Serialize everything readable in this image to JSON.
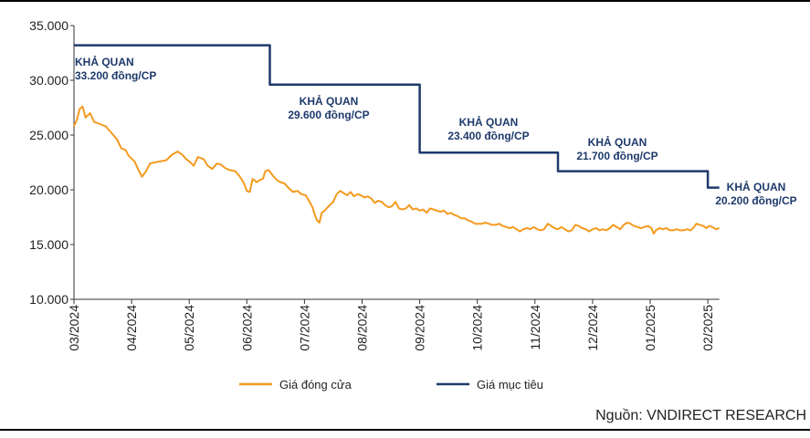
{
  "chart_data": {
    "type": "line",
    "ylim": [
      10000,
      35000
    ],
    "y_ticks": [
      "10.000",
      "15.000",
      "20.000",
      "25.000",
      "30.000",
      "35.000"
    ],
    "x_tick_labels": [
      "03/2024",
      "04/2024",
      "05/2024",
      "06/2024",
      "07/2024",
      "08/2024",
      "09/2024",
      "10/2024",
      "11/2024",
      "12/2024",
      "01/2025",
      "02/2025"
    ],
    "grid": false,
    "legend_position": "bottom",
    "series": [
      {
        "name": "Giá đóng cửa",
        "color": "#f39a1f",
        "points": [
          [
            0.0,
            25800
          ],
          [
            0.05,
            26400
          ],
          [
            0.1,
            27400
          ],
          [
            0.15,
            27600
          ],
          [
            0.2,
            26600
          ],
          [
            0.28,
            27000
          ],
          [
            0.35,
            26200
          ],
          [
            0.45,
            26000
          ],
          [
            0.55,
            25800
          ],
          [
            0.65,
            25200
          ],
          [
            0.75,
            24600
          ],
          [
            0.82,
            23800
          ],
          [
            0.9,
            23600
          ],
          [
            0.95,
            23100
          ],
          [
            1.05,
            22600
          ],
          [
            1.12,
            21800
          ],
          [
            1.18,
            21200
          ],
          [
            1.25,
            21700
          ],
          [
            1.32,
            22400
          ],
          [
            1.4,
            22500
          ],
          [
            1.5,
            22600
          ],
          [
            1.6,
            22700
          ],
          [
            1.7,
            23200
          ],
          [
            1.8,
            23500
          ],
          [
            1.88,
            23200
          ],
          [
            1.95,
            22800
          ],
          [
            2.0,
            22600
          ],
          [
            2.08,
            22200
          ],
          [
            2.15,
            23000
          ],
          [
            2.25,
            22800
          ],
          [
            2.32,
            22200
          ],
          [
            2.4,
            21900
          ],
          [
            2.48,
            22400
          ],
          [
            2.55,
            22300
          ],
          [
            2.62,
            22000
          ],
          [
            2.7,
            21800
          ],
          [
            2.8,
            21700
          ],
          [
            2.88,
            21200
          ],
          [
            2.95,
            20600
          ],
          [
            3.0,
            19900
          ],
          [
            3.05,
            19800
          ],
          [
            3.1,
            21000
          ],
          [
            3.17,
            20700
          ],
          [
            3.23,
            20900
          ],
          [
            3.28,
            21000
          ],
          [
            3.32,
            21700
          ],
          [
            3.38,
            21800
          ],
          [
            3.45,
            21300
          ],
          [
            3.52,
            20900
          ],
          [
            3.58,
            20700
          ],
          [
            3.65,
            20600
          ],
          [
            3.72,
            20200
          ],
          [
            3.8,
            19800
          ],
          [
            3.88,
            19900
          ],
          [
            3.95,
            19600
          ],
          [
            4.02,
            19500
          ],
          [
            4.08,
            19000
          ],
          [
            4.14,
            18400
          ],
          [
            4.18,
            17700
          ],
          [
            4.22,
            17200
          ],
          [
            4.26,
            17000
          ],
          [
            4.3,
            17900
          ],
          [
            4.35,
            18100
          ],
          [
            4.42,
            18500
          ],
          [
            4.5,
            18900
          ],
          [
            4.56,
            19600
          ],
          [
            4.62,
            19900
          ],
          [
            4.68,
            19700
          ],
          [
            4.74,
            19500
          ],
          [
            4.8,
            19800
          ],
          [
            4.86,
            19400
          ],
          [
            4.92,
            19600
          ],
          [
            4.98,
            19500
          ],
          [
            5.04,
            19300
          ],
          [
            5.1,
            19400
          ],
          [
            5.16,
            19200
          ],
          [
            5.22,
            18800
          ],
          [
            5.28,
            19000
          ],
          [
            5.34,
            18900
          ],
          [
            5.4,
            18600
          ],
          [
            5.46,
            18400
          ],
          [
            5.52,
            18500
          ],
          [
            5.58,
            18900
          ],
          [
            5.64,
            18300
          ],
          [
            5.7,
            18200
          ],
          [
            5.76,
            18300
          ],
          [
            5.82,
            18600
          ],
          [
            5.88,
            18200
          ],
          [
            5.94,
            18300
          ],
          [
            6.0,
            18100
          ],
          [
            6.06,
            18200
          ],
          [
            6.12,
            17900
          ],
          [
            6.18,
            18300
          ],
          [
            6.24,
            18200
          ],
          [
            6.3,
            18100
          ],
          [
            6.36,
            18000
          ],
          [
            6.42,
            18100
          ],
          [
            6.48,
            17800
          ],
          [
            6.54,
            17900
          ],
          [
            6.6,
            17700
          ],
          [
            6.66,
            17600
          ],
          [
            6.72,
            17400
          ],
          [
            6.78,
            17400
          ],
          [
            6.84,
            17200
          ],
          [
            6.9,
            17100
          ],
          [
            6.96,
            16900
          ],
          [
            7.02,
            16900
          ],
          [
            7.08,
            16900
          ],
          [
            7.14,
            17000
          ],
          [
            7.2,
            16900
          ],
          [
            7.26,
            16800
          ],
          [
            7.32,
            16800
          ],
          [
            7.38,
            16900
          ],
          [
            7.44,
            16700
          ],
          [
            7.5,
            16600
          ],
          [
            7.56,
            16500
          ],
          [
            7.62,
            16600
          ],
          [
            7.68,
            16400
          ],
          [
            7.74,
            16200
          ],
          [
            7.8,
            16400
          ],
          [
            7.86,
            16500
          ],
          [
            7.92,
            16400
          ],
          [
            7.98,
            16600
          ],
          [
            8.04,
            16400
          ],
          [
            8.1,
            16300
          ],
          [
            8.16,
            16400
          ],
          [
            8.22,
            16900
          ],
          [
            8.28,
            16700
          ],
          [
            8.34,
            16500
          ],
          [
            8.4,
            16400
          ],
          [
            8.46,
            16600
          ],
          [
            8.52,
            16400
          ],
          [
            8.58,
            16200
          ],
          [
            8.64,
            16300
          ],
          [
            8.7,
            16800
          ],
          [
            8.76,
            16700
          ],
          [
            8.82,
            16500
          ],
          [
            8.88,
            16400
          ],
          [
            8.94,
            16200
          ],
          [
            9.0,
            16400
          ],
          [
            9.06,
            16500
          ],
          [
            9.12,
            16300
          ],
          [
            9.18,
            16400
          ],
          [
            9.24,
            16300
          ],
          [
            9.3,
            16500
          ],
          [
            9.36,
            16800
          ],
          [
            9.42,
            16600
          ],
          [
            9.48,
            16400
          ],
          [
            9.54,
            16800
          ],
          [
            9.6,
            17000
          ],
          [
            9.66,
            16900
          ],
          [
            9.72,
            16700
          ],
          [
            9.78,
            16600
          ],
          [
            9.84,
            16500
          ],
          [
            9.9,
            16600
          ],
          [
            9.96,
            16700
          ],
          [
            10.02,
            16500
          ],
          [
            10.06,
            16000
          ],
          [
            10.1,
            16300
          ],
          [
            10.16,
            16500
          ],
          [
            10.22,
            16400
          ],
          [
            10.28,
            16500
          ],
          [
            10.34,
            16300
          ],
          [
            10.4,
            16300
          ],
          [
            10.46,
            16400
          ],
          [
            10.52,
            16300
          ],
          [
            10.58,
            16300
          ],
          [
            10.64,
            16400
          ],
          [
            10.7,
            16300
          ],
          [
            10.76,
            16600
          ],
          [
            10.8,
            16900
          ],
          [
            10.86,
            16800
          ],
          [
            10.92,
            16700
          ],
          [
            10.98,
            16500
          ],
          [
            11.02,
            16700
          ],
          [
            11.08,
            16600
          ],
          [
            11.14,
            16400
          ],
          [
            11.2,
            16500
          ]
        ]
      },
      {
        "name": "Giá mục tiêu",
        "color": "#1e3a6b",
        "points": [
          [
            0.0,
            33200
          ],
          [
            3.4,
            33200
          ],
          [
            3.4,
            29600
          ],
          [
            6.0,
            29600
          ],
          [
            6.0,
            23400
          ],
          [
            8.4,
            23400
          ],
          [
            8.4,
            21700
          ],
          [
            11.0,
            21700
          ],
          [
            11.0,
            20200
          ],
          [
            11.2,
            20200
          ]
        ]
      }
    ],
    "annotations": [
      {
        "line1": "KHẢ QUAN",
        "line2": "33.200 đồng/CP"
      },
      {
        "line1": "KHẢ QUAN",
        "line2": "29.600 đồng/CP"
      },
      {
        "line1": "KHẢ QUAN",
        "line2": "23.400 đồng/CP"
      },
      {
        "line1": "KHẢ QUAN",
        "line2": "21.700 đồng/CP"
      },
      {
        "line1": "KHẢ QUAN",
        "line2": "20.200 đồng/CP"
      }
    ]
  },
  "source": "Nguồn: VNDIRECT RESEARCH"
}
